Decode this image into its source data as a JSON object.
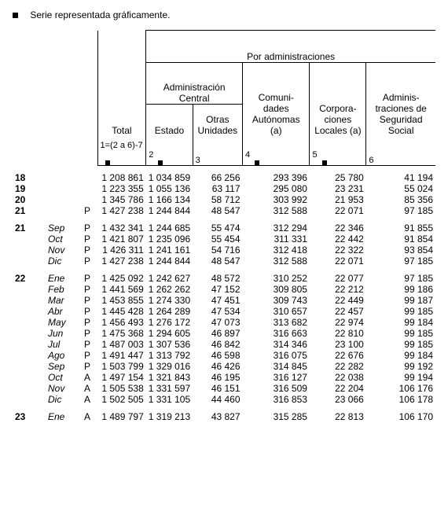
{
  "legend_text": "Serie representada gráficamente.",
  "headers": {
    "por_admin": "Por administraciones",
    "total": "Total",
    "admin_central": "Administración Central",
    "comunidades": "Comuni- dades Autónomas (a)",
    "corporaciones": "Corpora- ciones Locales (a)",
    "seguridad": "Adminis- traciones de Seguridad Social",
    "estado": "Estado",
    "otras": "Otras Unidades"
  },
  "colnums": {
    "c1": "1=(2 a 6)-7",
    "c2": "2",
    "c3": "3",
    "c4": "4",
    "c5": "5",
    "c6": "6"
  },
  "rows": [
    {
      "g": 0,
      "year": "18",
      "month": "",
      "st": "",
      "total": "1 208 861",
      "estado": "1 034 859",
      "otras": "66 256",
      "ccaa": "293 396",
      "corp": "25 780",
      "ss": "41 194"
    },
    {
      "g": 0,
      "year": "19",
      "month": "",
      "st": "",
      "total": "1 223 355",
      "estado": "1 055 136",
      "otras": "63 117",
      "ccaa": "295 080",
      "corp": "23 231",
      "ss": "55 024"
    },
    {
      "g": 0,
      "year": "20",
      "month": "",
      "st": "",
      "total": "1 345 786",
      "estado": "1 166 134",
      "otras": "58 712",
      "ccaa": "303 992",
      "corp": "21 953",
      "ss": "85 356"
    },
    {
      "g": 0,
      "year": "21",
      "month": "",
      "st": "P",
      "total": "1 427 238",
      "estado": "1 244 844",
      "otras": "48 547",
      "ccaa": "312 588",
      "corp": "22 071",
      "ss": "97 185"
    },
    {
      "g": 1,
      "year": "21",
      "month": "Sep",
      "st": "P",
      "total": "1 432 341",
      "estado": "1 244 685",
      "otras": "55 474",
      "ccaa": "312 294",
      "corp": "22 346",
      "ss": "91 855"
    },
    {
      "g": 1,
      "year": "",
      "month": "Oct",
      "st": "P",
      "total": "1 421 807",
      "estado": "1 235 096",
      "otras": "55 454",
      "ccaa": "311 331",
      "corp": "22 442",
      "ss": "91 854"
    },
    {
      "g": 1,
      "year": "",
      "month": "Nov",
      "st": "P",
      "total": "1 426 311",
      "estado": "1 241 161",
      "otras": "54 716",
      "ccaa": "312 418",
      "corp": "22 322",
      "ss": "93 854"
    },
    {
      "g": 1,
      "year": "",
      "month": "Dic",
      "st": "P",
      "total": "1 427 238",
      "estado": "1 244 844",
      "otras": "48 547",
      "ccaa": "312 588",
      "corp": "22 071",
      "ss": "97 185"
    },
    {
      "g": 2,
      "year": "22",
      "month": "Ene",
      "st": "P",
      "total": "1 425 092",
      "estado": "1 242 627",
      "otras": "48 572",
      "ccaa": "310 252",
      "corp": "22 077",
      "ss": "97 185"
    },
    {
      "g": 2,
      "year": "",
      "month": "Feb",
      "st": "P",
      "total": "1 441 569",
      "estado": "1 262 262",
      "otras": "47 152",
      "ccaa": "309 805",
      "corp": "22 212",
      "ss": "99 186"
    },
    {
      "g": 2,
      "year": "",
      "month": "Mar",
      "st": "P",
      "total": "1 453 855",
      "estado": "1 274 330",
      "otras": "47 451",
      "ccaa": "309 743",
      "corp": "22 449",
      "ss": "99 187"
    },
    {
      "g": 2,
      "year": "",
      "month": "Abr",
      "st": "P",
      "total": "1 445 428",
      "estado": "1 264 289",
      "otras": "47 534",
      "ccaa": "310 657",
      "corp": "22 457",
      "ss": "99 185"
    },
    {
      "g": 2,
      "year": "",
      "month": "May",
      "st": "P",
      "total": "1 456 493",
      "estado": "1 276 172",
      "otras": "47 073",
      "ccaa": "313 682",
      "corp": "22 974",
      "ss": "99 184"
    },
    {
      "g": 2,
      "year": "",
      "month": "Jun",
      "st": "P",
      "total": "1 475 368",
      "estado": "1 294 605",
      "otras": "46 897",
      "ccaa": "316 663",
      "corp": "22 810",
      "ss": "99 185"
    },
    {
      "g": 2,
      "year": "",
      "month": "Jul",
      "st": "P",
      "total": "1 487 003",
      "estado": "1 307 536",
      "otras": "46 842",
      "ccaa": "314 346",
      "corp": "23 100",
      "ss": "99 185"
    },
    {
      "g": 2,
      "year": "",
      "month": "Ago",
      "st": "P",
      "total": "1 491 447",
      "estado": "1 313 792",
      "otras": "46 598",
      "ccaa": "316 075",
      "corp": "22 676",
      "ss": "99 184"
    },
    {
      "g": 2,
      "year": "",
      "month": "Sep",
      "st": "P",
      "total": "1 503 799",
      "estado": "1 329 016",
      "otras": "46 426",
      "ccaa": "314 845",
      "corp": "22 282",
      "ss": "99 192"
    },
    {
      "g": 2,
      "year": "",
      "month": "Oct",
      "st": "A",
      "total": "1 497 154",
      "estado": "1 321 843",
      "otras": "46 195",
      "ccaa": "316 127",
      "corp": "22 038",
      "ss": "99 194"
    },
    {
      "g": 2,
      "year": "",
      "month": "Nov",
      "st": "A",
      "total": "1 505 538",
      "estado": "1 331 597",
      "otras": "46 151",
      "ccaa": "316 509",
      "corp": "22 204",
      "ss": "106 176"
    },
    {
      "g": 2,
      "year": "",
      "month": "Dic",
      "st": "A",
      "total": "1 502 505",
      "estado": "1 331 105",
      "otras": "44 460",
      "ccaa": "316 853",
      "corp": "23 066",
      "ss": "106 178"
    },
    {
      "g": 3,
      "year": "23",
      "month": "Ene",
      "st": "A",
      "total": "1 489 797",
      "estado": "1 319 213",
      "otras": "43 827",
      "ccaa": "315 285",
      "corp": "22 813",
      "ss": "106 170"
    }
  ]
}
